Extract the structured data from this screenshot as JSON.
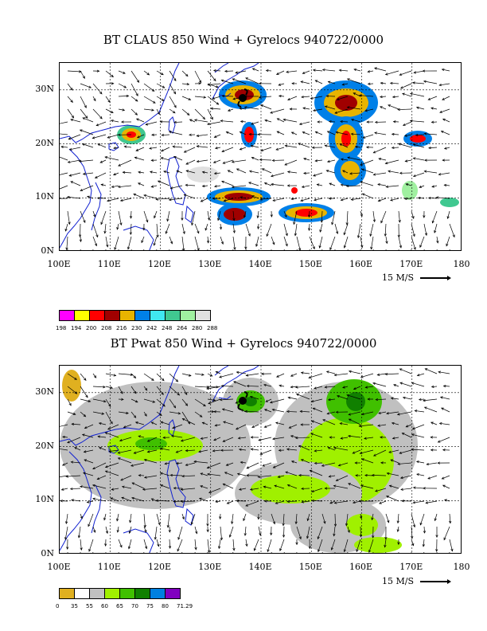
{
  "top": {
    "title": "BT CLAUS 850 Wind + Gyrelocs 940722/0000",
    "lat_labels": [
      "30N",
      "20N",
      "10N",
      "0N"
    ],
    "lon_labels": [
      "100E",
      "110E",
      "120E",
      "130E",
      "140E",
      "150E",
      "160E",
      "170E",
      "180"
    ],
    "scale_label": "15 M/S",
    "legend_colors": [
      "#ff00ff",
      "#ffff00",
      "#ff0000",
      "#a00000",
      "#e8b400",
      "#0080e8",
      "#40e8f0",
      "#40c890",
      "#a0f0a0",
      "#e0e0e0"
    ],
    "legend_labels": [
      "198",
      "194",
      "200",
      "208",
      "216",
      "230",
      "242",
      "248",
      "264",
      "280",
      "288"
    ]
  },
  "bottom": {
    "title": "BT Pwat 850 Wind + Gyrelocs 940722/0000",
    "lat_labels": [
      "30N",
      "20N",
      "10N",
      "0N"
    ],
    "lon_labels": [
      "100E",
      "110E",
      "120E",
      "130E",
      "140E",
      "150E",
      "160E",
      "170E",
      "180"
    ],
    "scale_label": "15 M/S",
    "legend_colors": [
      "#e0b020",
      "#ffffff",
      "#c0c0c0",
      "#a0f000",
      "#40c000",
      "#108000",
      "#0080e0",
      "#8000c0"
    ],
    "legend_labels": [
      "0",
      "35",
      "55",
      "60",
      "65",
      "70",
      "75",
      "80",
      "71.29"
    ]
  }
}
